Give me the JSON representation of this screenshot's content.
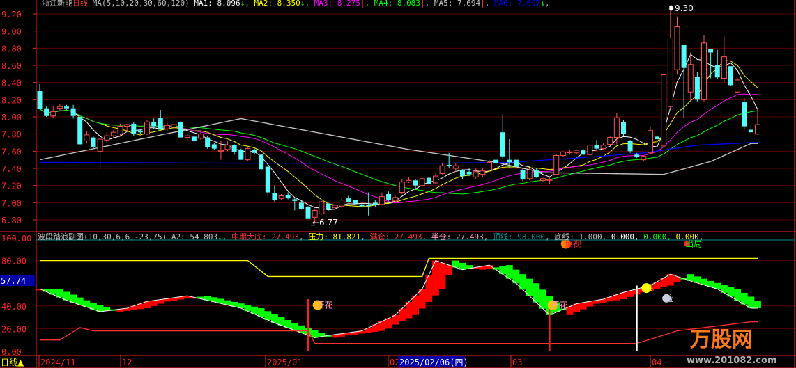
{
  "header": {
    "title": "浙江新能",
    "period": "日线",
    "ma_params": "MA(5,10,20,30,60,120)",
    "ma": [
      {
        "label": "MA1",
        "value": "8.096",
        "arrow": "↓",
        "color": "#ffffff"
      },
      {
        "label": "MA2",
        "value": "8.350",
        "arrow": "↓",
        "color": "#ffff00"
      },
      {
        "label": "MA3",
        "value": "8.275",
        "arrow": "|",
        "color": "#ff00ff"
      },
      {
        "label": "MA4",
        "value": "8.083",
        "arrow": "|",
        "color": "#00ff00"
      },
      {
        "label": "MA5",
        "value": "7.694",
        "arrow": "|",
        "color": "#c8c8c8"
      },
      {
        "label": "MA6",
        "value": "7.697",
        "arrow": "↓",
        "color": "#0000ff"
      }
    ]
  },
  "indicator_header": {
    "name": "波段踏浪副图",
    "params": "(10,30,6,6,-23,75)",
    "items": [
      {
        "label": "A2",
        "value": "54.803",
        "arrow": "↓",
        "color": "#c0c0c0"
      },
      {
        "label": "中期大底",
        "value": "27.493",
        "arrow": "",
        "color": "#ff3030"
      },
      {
        "label": "压力",
        "value": "81.821",
        "arrow": "",
        "color": "#ffff00"
      },
      {
        "label": "满仓",
        "value": "27.493",
        "arrow": "",
        "color": "#ff3030"
      },
      {
        "label": "半仓",
        "value": "27.493",
        "arrow": "",
        "color": "#ff9fc0"
      },
      {
        "label": "顶线",
        "value": "98.000",
        "arrow": "",
        "color": "#009090"
      },
      {
        "label": "底线",
        "value": "1.000",
        "arrow": "",
        "color": "#c0c0c0"
      }
    ],
    "extra": [
      {
        "value": "0.000",
        "color": "#ffffff"
      },
      {
        "value": "0.000",
        "color": "#00ff00"
      },
      {
        "value": "0.000",
        "color": "#ffff00"
      }
    ]
  },
  "bottom_bar": {
    "period_button": "日线▲",
    "date_labels": [
      "2024/11",
      "12",
      "2025/01",
      "02",
      "03",
      "04"
    ],
    "cursor_date": "2025/02/06(四)"
  },
  "watermark": {
    "logo": "万股网",
    "url": "www.201082.com"
  },
  "colors": {
    "up": "#ff5050",
    "down": "#54fcfc",
    "grid": "#5a0000",
    "axis": "#ff2020",
    "cursor_bg": "#0000a8"
  },
  "chart_data": [
    {
      "type": "candlestick",
      "title": "浙江新能 日线",
      "y_ticks": [
        "9.20",
        "9.00",
        "8.80",
        "8.60",
        "8.40",
        "8.20",
        "8.00",
        "7.80",
        "7.60",
        "7.40",
        "7.20",
        "7.00",
        "6.80"
      ],
      "ylim": [
        6.8,
        9.2
      ],
      "grid": true,
      "high_label": "9.30",
      "low_label": "6.77",
      "ohlc": [
        [
          8.3,
          8.38,
          8.09,
          8.09
        ],
        [
          8.1,
          8.12,
          8.0,
          8.01
        ],
        [
          8.01,
          8.12,
          7.99,
          8.06
        ],
        [
          8.1,
          8.15,
          8.07,
          8.12
        ],
        [
          8.12,
          8.14,
          8.08,
          8.1
        ],
        [
          8.1,
          8.14,
          7.98,
          8.01
        ],
        [
          8.0,
          8.0,
          7.68,
          7.68
        ],
        [
          7.72,
          7.83,
          7.69,
          7.79
        ],
        [
          7.76,
          7.77,
          7.63,
          7.65
        ],
        [
          7.6,
          7.76,
          7.39,
          7.74
        ],
        [
          7.73,
          7.82,
          7.7,
          7.78
        ],
        [
          7.78,
          7.85,
          7.76,
          7.82
        ],
        [
          7.8,
          7.92,
          7.78,
          7.89
        ],
        [
          7.89,
          7.92,
          7.82,
          7.91
        ],
        [
          7.92,
          7.94,
          7.78,
          7.8
        ],
        [
          7.84,
          7.86,
          7.8,
          7.82
        ],
        [
          7.8,
          7.96,
          7.79,
          7.94
        ],
        [
          7.94,
          7.98,
          7.86,
          7.89
        ],
        [
          7.99,
          8.08,
          7.85,
          7.85
        ],
        [
          7.86,
          7.93,
          7.83,
          7.9
        ],
        [
          7.88,
          7.93,
          7.84,
          7.91
        ],
        [
          7.94,
          7.95,
          7.76,
          7.76
        ],
        [
          7.76,
          7.8,
          7.72,
          7.78
        ],
        [
          7.77,
          7.8,
          7.69,
          7.72
        ],
        [
          7.75,
          7.84,
          7.73,
          7.8
        ],
        [
          7.76,
          7.78,
          7.63,
          7.65
        ],
        [
          7.68,
          7.7,
          7.61,
          7.63
        ],
        [
          7.6,
          7.72,
          7.5,
          7.61
        ],
        [
          7.62,
          7.72,
          7.6,
          7.67
        ],
        [
          7.67,
          7.68,
          7.56,
          7.59
        ],
        [
          7.62,
          7.63,
          7.5,
          7.5
        ],
        [
          7.5,
          7.64,
          7.49,
          7.63
        ],
        [
          7.62,
          7.63,
          7.56,
          7.58
        ],
        [
          7.56,
          7.57,
          7.37,
          7.39
        ],
        [
          7.42,
          7.43,
          7.08,
          7.12
        ],
        [
          7.11,
          7.2,
          7.01,
          7.03
        ],
        [
          7.05,
          7.1,
          7.03,
          7.08
        ],
        [
          7.09,
          7.12,
          7.04,
          7.05
        ],
        [
          7.04,
          7.05,
          6.91,
          7.02
        ],
        [
          7.0,
          7.02,
          6.92,
          6.93
        ],
        [
          6.95,
          6.96,
          6.81,
          6.81
        ],
        [
          6.83,
          6.93,
          6.77,
          6.91
        ],
        [
          6.87,
          7.02,
          6.86,
          7.01
        ],
        [
          6.99,
          7.0,
          6.9,
          6.92
        ],
        [
          6.94,
          6.98,
          6.92,
          6.97
        ],
        [
          6.96,
          7.05,
          6.94,
          7.03
        ],
        [
          7.05,
          7.08,
          7.0,
          7.01
        ],
        [
          7.03,
          7.04,
          6.98,
          6.99
        ],
        [
          6.98,
          6.99,
          6.95,
          6.96
        ],
        [
          6.98,
          7.12,
          6.85,
          6.96
        ],
        [
          7.0,
          7.03,
          6.95,
          6.97
        ],
        [
          6.98,
          7.12,
          6.97,
          7.07
        ],
        [
          7.1,
          7.13,
          7.02,
          7.03
        ],
        [
          7.02,
          7.08,
          7.0,
          7.06
        ],
        [
          7.12,
          7.27,
          7.1,
          7.24
        ],
        [
          7.24,
          7.3,
          7.23,
          7.26
        ],
        [
          7.26,
          7.27,
          7.15,
          7.2
        ],
        [
          7.2,
          7.3,
          7.18,
          7.28
        ],
        [
          7.29,
          7.3,
          7.21,
          7.22
        ],
        [
          7.23,
          7.34,
          7.22,
          7.31
        ],
        [
          7.34,
          7.46,
          7.33,
          7.43
        ],
        [
          7.44,
          7.58,
          7.4,
          7.43
        ],
        [
          7.4,
          7.46,
          7.36,
          7.43
        ],
        [
          7.38,
          7.39,
          7.27,
          7.31
        ],
        [
          7.36,
          7.4,
          7.31,
          7.33
        ],
        [
          7.3,
          7.4,
          7.28,
          7.36
        ],
        [
          7.33,
          7.4,
          7.3,
          7.37
        ],
        [
          7.38,
          7.5,
          7.36,
          7.47
        ],
        [
          7.5,
          7.52,
          7.45,
          7.46
        ],
        [
          7.82,
          8.03,
          7.52,
          7.54
        ],
        [
          7.5,
          7.74,
          7.4,
          7.47
        ],
        [
          7.5,
          7.52,
          7.38,
          7.42
        ],
        [
          7.38,
          7.4,
          7.25,
          7.27
        ],
        [
          7.28,
          7.4,
          7.26,
          7.38
        ],
        [
          7.38,
          7.4,
          7.29,
          7.3
        ],
        [
          7.26,
          7.29,
          7.24,
          7.28
        ],
        [
          7.26,
          7.3,
          7.22,
          7.27
        ],
        [
          7.33,
          7.57,
          7.32,
          7.55
        ],
        [
          7.55,
          7.6,
          7.53,
          7.59
        ],
        [
          7.59,
          7.62,
          7.56,
          7.59
        ],
        [
          7.58,
          7.62,
          7.56,
          7.61
        ],
        [
          7.61,
          7.63,
          7.55,
          7.56
        ],
        [
          7.56,
          7.69,
          7.54,
          7.67
        ],
        [
          7.67,
          7.73,
          7.62,
          7.63
        ],
        [
          7.63,
          7.7,
          7.62,
          7.67
        ],
        [
          7.68,
          7.78,
          7.67,
          7.76
        ],
        [
          7.76,
          8.05,
          7.68,
          7.99
        ],
        [
          7.94,
          7.96,
          7.78,
          7.8
        ],
        [
          7.72,
          7.73,
          7.58,
          7.6
        ],
        [
          7.56,
          7.58,
          7.52,
          7.53
        ],
        [
          7.5,
          7.55,
          7.49,
          7.54
        ],
        [
          7.58,
          7.89,
          7.56,
          7.84
        ],
        [
          7.77,
          7.79,
          7.72,
          7.74
        ],
        [
          7.66,
          8.49,
          7.66,
          8.49
        ],
        [
          8.12,
          9.3,
          8.1,
          8.92
        ],
        [
          8.55,
          9.17,
          8.5,
          9.05
        ],
        [
          8.84,
          8.84,
          7.99,
          8.57
        ],
        [
          8.29,
          8.75,
          8.2,
          8.61
        ],
        [
          8.47,
          8.52,
          8.18,
          8.2
        ],
        [
          8.2,
          8.95,
          8.18,
          8.86
        ],
        [
          8.79,
          8.79,
          8.45,
          8.75
        ],
        [
          8.6,
          8.78,
          8.44,
          8.46
        ],
        [
          8.45,
          8.94,
          8.4,
          8.7
        ],
        [
          8.59,
          8.59,
          8.36,
          8.37
        ],
        [
          8.29,
          8.45,
          8.28,
          8.43
        ],
        [
          8.17,
          8.22,
          7.85,
          7.89
        ],
        [
          7.85,
          7.9,
          7.8,
          7.82
        ],
        [
          7.8,
          8.1,
          7.79,
          7.91
        ]
      ],
      "moving_averages": {
        "periods": [
          5,
          10,
          20,
          30,
          60,
          120
        ],
        "ma5_60_points": [
          [
            0,
            7.5
          ],
          [
            30,
            7.98
          ],
          [
            55,
            7.62
          ],
          [
            68,
            7.47
          ],
          [
            75,
            7.35
          ],
          [
            93,
            7.33
          ],
          [
            100,
            7.48
          ],
          [
            106,
            7.69
          ]
        ],
        "ma6_120_points": [
          [
            0,
            7.47
          ],
          [
            30,
            7.46
          ],
          [
            60,
            7.46
          ],
          [
            70,
            7.47
          ],
          [
            80,
            7.52
          ],
          [
            90,
            7.58
          ],
          [
            98,
            7.67
          ],
          [
            106,
            7.7
          ]
        ]
      }
    },
    {
      "type": "bar",
      "title": "波段踏浪副图",
      "y_ticks": [
        "100.00",
        "80.00",
        "40.00",
        "20.00",
        "0.00"
      ],
      "current_value_label": "57.74",
      "ylim": [
        0,
        100
      ],
      "wave_points": [
        [
          0,
          55
        ],
        [
          4,
          45
        ],
        [
          9,
          35
        ],
        [
          13,
          38
        ],
        [
          16,
          44
        ],
        [
          22,
          49
        ],
        [
          25,
          45
        ],
        [
          30,
          38
        ],
        [
          35,
          25
        ],
        [
          41,
          12
        ],
        [
          43,
          14
        ],
        [
          48,
          18
        ],
        [
          53,
          32
        ],
        [
          57,
          55
        ],
        [
          59,
          80
        ],
        [
          63,
          72
        ],
        [
          67,
          76
        ],
        [
          71,
          60
        ],
        [
          76,
          32
        ],
        [
          80,
          42
        ],
        [
          84,
          46
        ],
        [
          87,
          52
        ],
        [
          91,
          58
        ],
        [
          94,
          68
        ],
        [
          97,
          62
        ],
        [
          101,
          55
        ],
        [
          106,
          38
        ]
      ],
      "pressure_line": [
        [
          0,
          80
        ],
        [
          31,
          80
        ],
        [
          34,
          66
        ],
        [
          57,
          66
        ],
        [
          58,
          82
        ],
        [
          106,
          82
        ]
      ],
      "bottom_line": [
        [
          0,
          10
        ],
        [
          3,
          10
        ],
        [
          6,
          21
        ],
        [
          8,
          18
        ],
        [
          40,
          18
        ],
        [
          41,
          7
        ],
        [
          89,
          7
        ],
        [
          95,
          18
        ],
        [
          106,
          26
        ]
      ],
      "signal_spikes": [
        [
          40,
          46,
          "#ff2020"
        ],
        [
          76,
          40,
          "#ff2020"
        ],
        [
          89,
          58,
          "#ffffff"
        ]
      ],
      "annotations": [
        {
          "index": 41,
          "value": 42,
          "text": "开花",
          "color": "#ff9fc0"
        },
        {
          "index": 76,
          "value": 42,
          "text": "开花",
          "color": "#ff9fc0"
        },
        {
          "index": 78,
          "value": 96,
          "text": "重视",
          "color": "#ff2020"
        },
        {
          "index": 96,
          "value": 96,
          "text": "出局",
          "color": "#00ff00"
        },
        {
          "index": 90,
          "value": 57,
          "text": "买",
          "color": "#ffff00"
        },
        {
          "index": 93,
          "value": 48,
          "text": "拉",
          "color": "#c0c0d0"
        }
      ]
    }
  ]
}
